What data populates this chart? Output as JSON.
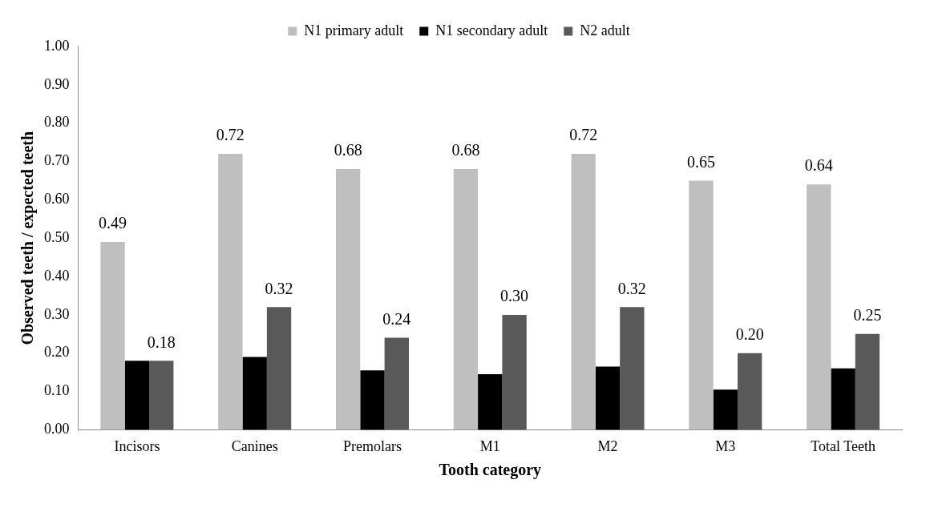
{
  "chart_data": {
    "type": "bar",
    "xlabel": "Tooth category",
    "ylabel": "Observed teeth / expected teeth",
    "categories": [
      "Incisors",
      "Canines",
      "Premolars",
      "M1",
      "M2",
      "M3",
      "Total Teeth"
    ],
    "series": [
      {
        "name": "N1 primary adult",
        "color": "#bfbfbf",
        "values": [
          0.49,
          0.72,
          0.68,
          0.68,
          0.72,
          0.65,
          0.64
        ],
        "value_labels": [
          "0.49",
          "0.72",
          "0.68",
          "0.68",
          "0.72",
          "0.65",
          "0.64"
        ]
      },
      {
        "name": "N1 secondary adult",
        "color": "#000000",
        "values": [
          0.18,
          0.19,
          0.155,
          0.145,
          0.165,
          0.105,
          0.16
        ]
      },
      {
        "name": "N2 adult",
        "color": "#595959",
        "values": [
          0.18,
          0.32,
          0.24,
          0.3,
          0.32,
          0.2,
          0.25
        ],
        "value_labels": [
          "0.18",
          "0.32",
          "0.24",
          "0.30",
          "0.32",
          "0.20",
          "0.25"
        ]
      }
    ],
    "ylim": [
      0,
      1
    ],
    "yticks": [
      {
        "value": 0,
        "label": "0.00"
      },
      {
        "value": 0.1,
        "label": "0.10"
      },
      {
        "value": 0.2,
        "label": "0.20"
      },
      {
        "value": 0.3,
        "label": "0.30"
      },
      {
        "value": 0.4,
        "label": "0.40"
      },
      {
        "value": 0.5,
        "label": "0.50"
      },
      {
        "value": 0.6,
        "label": "0.60"
      },
      {
        "value": 0.7,
        "label": "0.70"
      },
      {
        "value": 0.8,
        "label": "0.80"
      },
      {
        "value": 0.9,
        "label": "0.90"
      },
      {
        "value": 1,
        "label": "1.00"
      }
    ],
    "grid": false,
    "legend": "top"
  }
}
